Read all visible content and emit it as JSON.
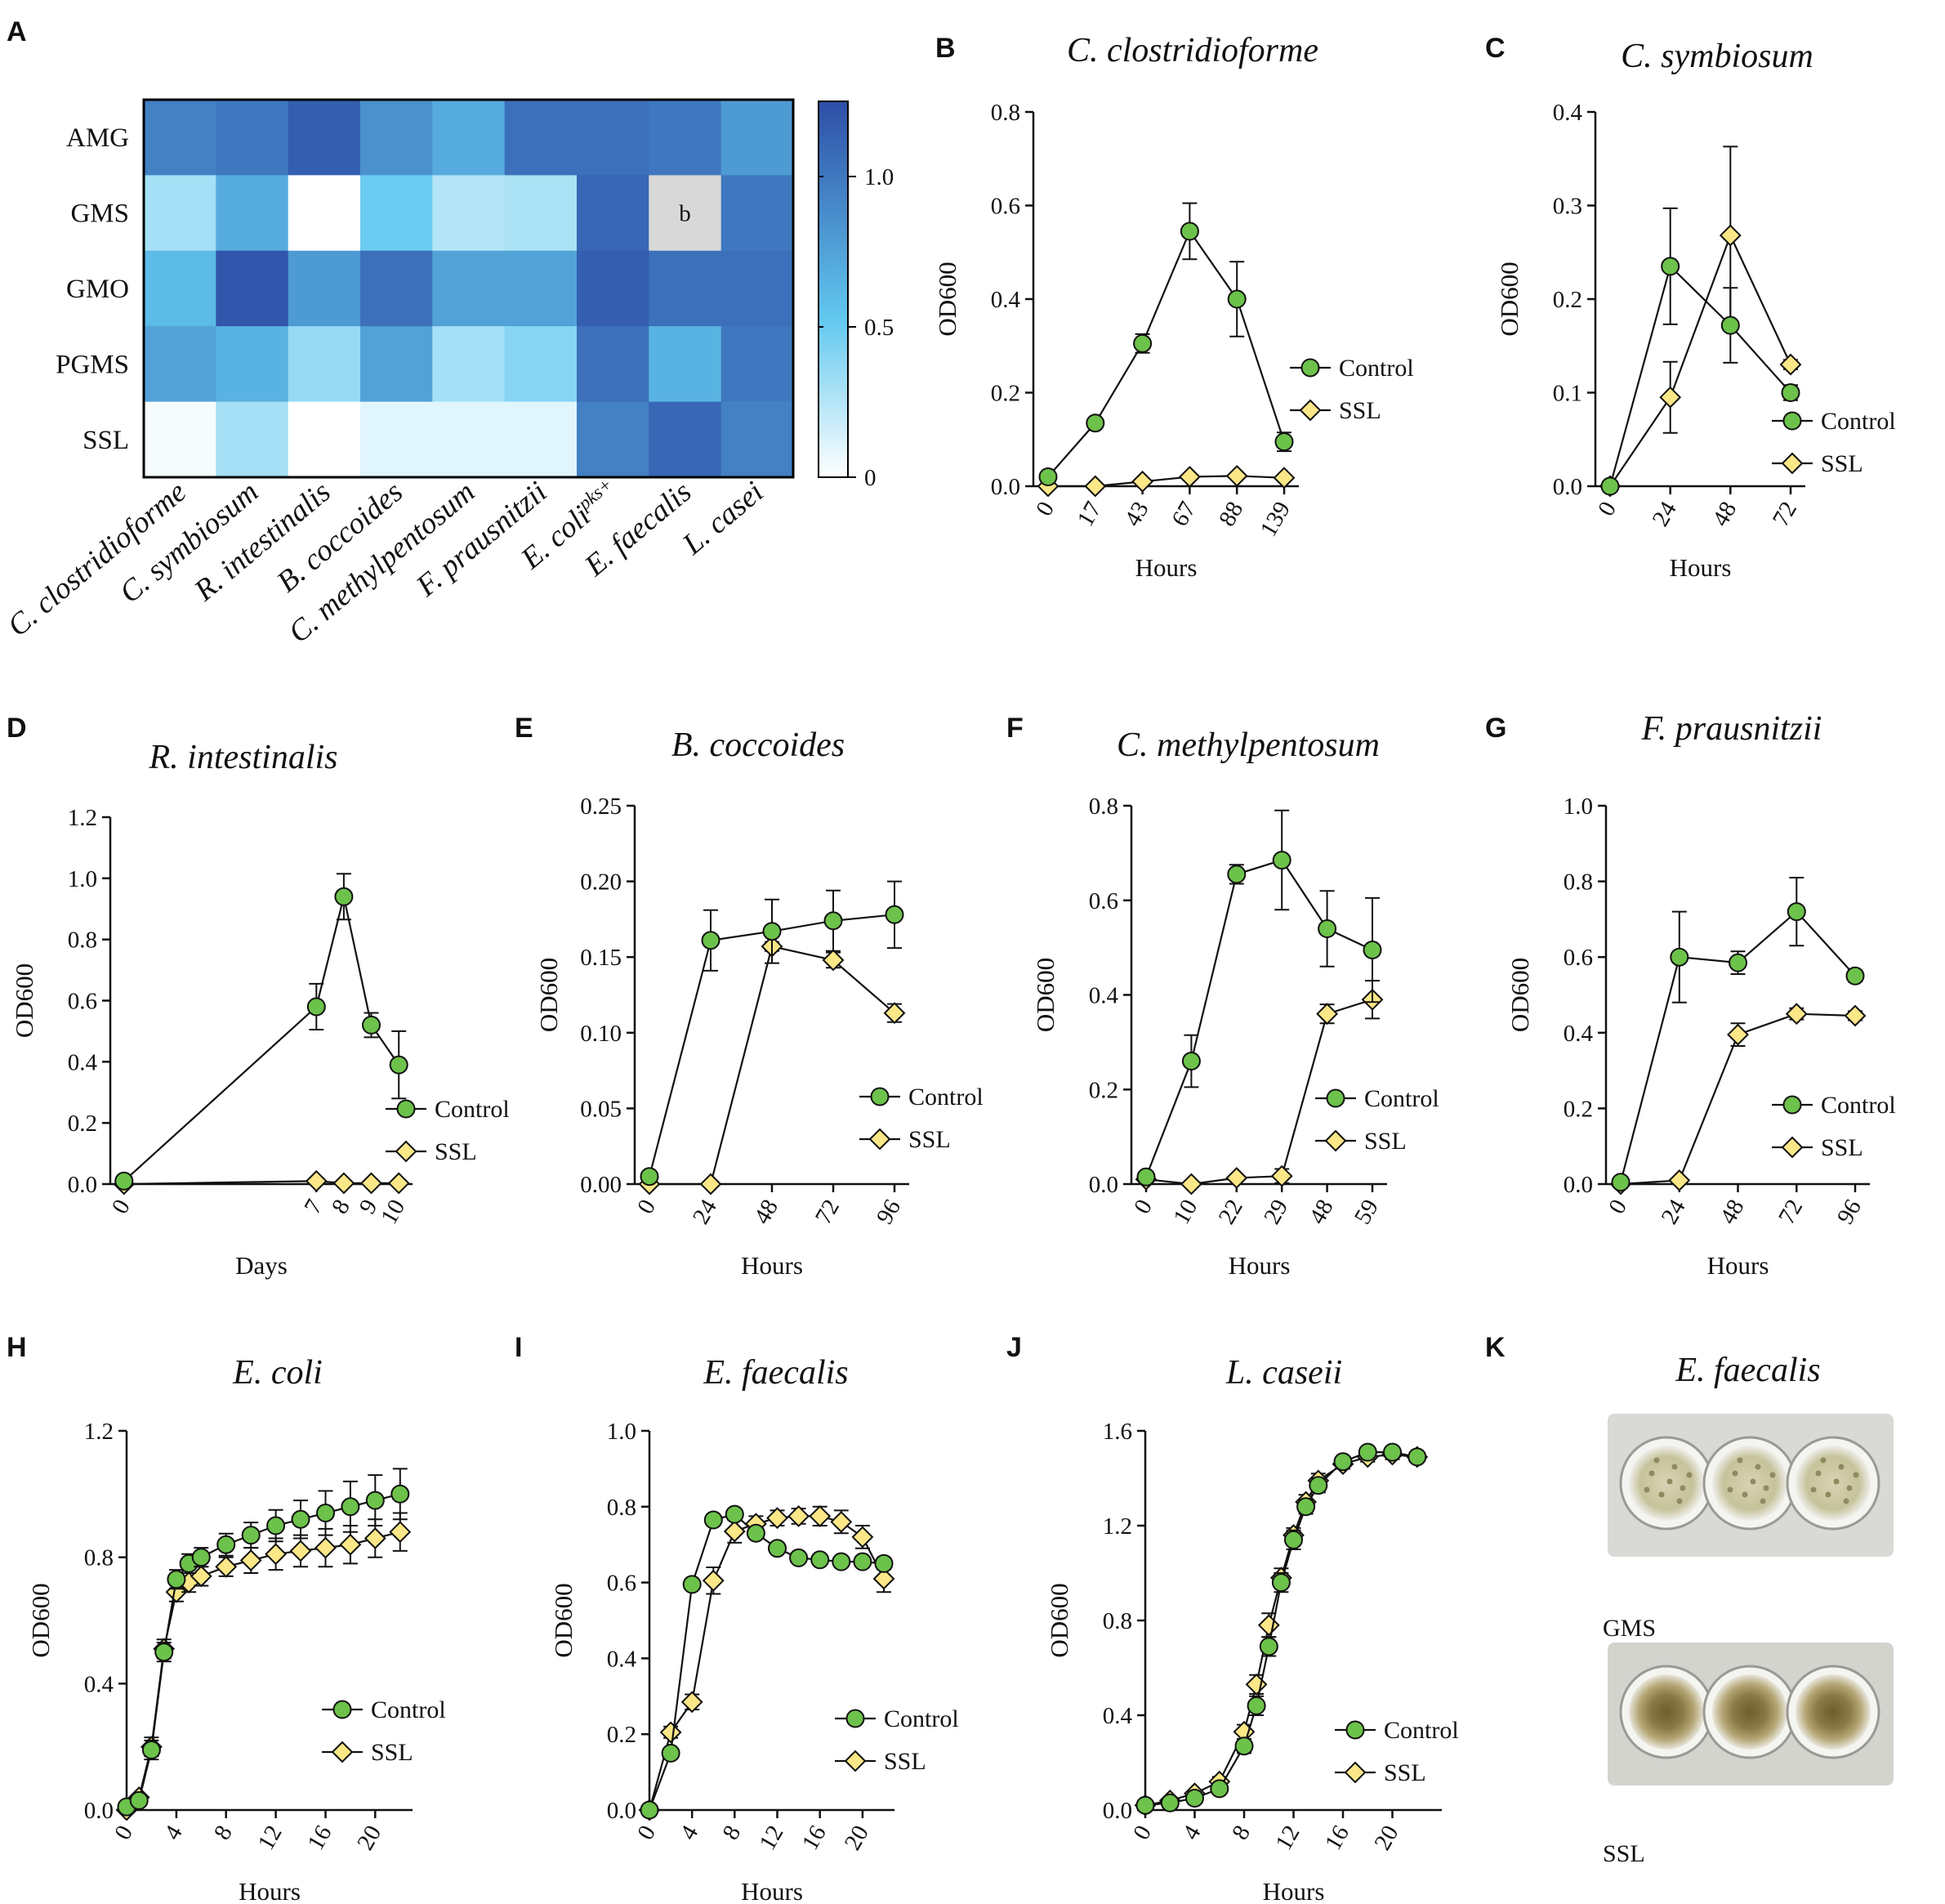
{
  "panels": {
    "A": "A",
    "B": "B",
    "C": "C",
    "D": "D",
    "E": "E",
    "F": "F",
    "G": "G",
    "H": "H",
    "I": "I",
    "J": "J",
    "K": "K"
  },
  "legend": {
    "control": "Control",
    "ssl": "SSL"
  },
  "colors": {
    "control": "#6cc24a",
    "ssl": "#fbe787",
    "heat_low": "#ffffff",
    "heat_mid": "#62c8ef",
    "heat_high": "#2d4ea6",
    "missing": "#d8d8d8"
  },
  "heatmap": {
    "rows": [
      "AMG",
      "GMS",
      "GMO",
      "PGMS",
      "SSL"
    ],
    "columns": [
      "C. clostridioforme",
      "C. symbiosum",
      "R. intestinalis",
      "B. coccoides",
      "C. methylpentosum",
      "F. prausnitzii",
      "E. coli",
      "E. faecalis",
      "L. casei"
    ],
    "ecoli_superscript": "pks+",
    "values": [
      [
        0.95,
        1.0,
        1.15,
        0.85,
        0.7,
        1.05,
        1.05,
        1.0,
        0.8
      ],
      [
        0.3,
        0.7,
        0.0,
        0.5,
        0.25,
        0.28,
        1.1,
        null,
        1.0
      ],
      [
        0.6,
        1.2,
        0.8,
        1.05,
        0.75,
        0.75,
        1.15,
        1.05,
        1.05
      ],
      [
        0.75,
        0.65,
        0.35,
        0.75,
        0.3,
        0.4,
        1.05,
        0.65,
        1.0
      ],
      [
        0.03,
        0.3,
        0.0,
        0.1,
        0.1,
        0.1,
        0.95,
        1.1,
        0.95
      ]
    ],
    "missing_label": "b",
    "colorbar_ticks": [
      "0",
      "0.5",
      "1.0"
    ],
    "colorbar_range": [
      0,
      1.25
    ]
  },
  "chart_data": [
    {
      "id": "B",
      "type": "line",
      "title": "C. clostridioforme",
      "xlabel": "Hours",
      "ylabel": "OD600",
      "ylim": [
        0,
        0.8
      ],
      "yticks": [
        "0.0",
        "0.2",
        "0.4",
        "0.6",
        "0.8"
      ],
      "categories": [
        "0",
        "17",
        "43",
        "67",
        "88",
        "139"
      ],
      "x_rotated": true,
      "series": [
        {
          "name": "Control",
          "values": [
            0.02,
            0.135,
            0.305,
            0.545,
            0.4,
            0.095
          ],
          "errors": [
            0.005,
            0.008,
            0.02,
            0.06,
            0.08,
            0.02
          ]
        },
        {
          "name": "SSL",
          "values": [
            0.0,
            0.0,
            0.01,
            0.02,
            0.022,
            0.018
          ],
          "errors": [
            0.002,
            0.002,
            0.003,
            0.004,
            0.004,
            0.004
          ]
        }
      ]
    },
    {
      "id": "C",
      "type": "line",
      "title": "C. symbiosum",
      "xlabel": "Hours",
      "ylabel": "OD600",
      "ylim": [
        0,
        0.4
      ],
      "yticks": [
        "0.0",
        "0.1",
        "0.2",
        "0.3",
        "0.4"
      ],
      "categories": [
        "0",
        "24",
        "48",
        "72"
      ],
      "x_rotated": true,
      "series": [
        {
          "name": "Control",
          "values": [
            0.0,
            0.235,
            0.172,
            0.1
          ],
          "errors": [
            0.0,
            0.062,
            0.04,
            0.008
          ]
        },
        {
          "name": "SSL",
          "values": [
            0.0,
            0.095,
            0.268,
            0.13
          ],
          "errors": [
            0.0,
            0.038,
            0.095,
            0.005
          ]
        }
      ]
    },
    {
      "id": "D",
      "type": "line",
      "title": "R. intestinalis",
      "xlabel": "Days",
      "ylabel": "OD600",
      "ylim": [
        0,
        1.2
      ],
      "yticks": [
        "0.0",
        "0.2",
        "0.4",
        "0.6",
        "0.8",
        "1.0",
        "1.2"
      ],
      "x": [
        0,
        7,
        8,
        9,
        10
      ],
      "xlim": [
        -0.5,
        10.5
      ],
      "xticks": [
        "0",
        "7",
        "8",
        "9",
        "10"
      ],
      "x_rotated": true,
      "series": [
        {
          "name": "Control",
          "values": [
            0.01,
            0.58,
            0.94,
            0.52,
            0.39
          ],
          "errors": [
            0.005,
            0.075,
            0.075,
            0.04,
            0.11
          ]
        },
        {
          "name": "SSL",
          "values": [
            0.0,
            0.01,
            0.003,
            0.003,
            0.003
          ],
          "errors": [
            0.002,
            0.005,
            0.002,
            0.002,
            0.002
          ]
        }
      ]
    },
    {
      "id": "E",
      "type": "line",
      "title": "B. coccoides",
      "xlabel": "Hours",
      "ylabel": "OD600",
      "ylim": [
        0,
        0.25
      ],
      "yticks": [
        "0.00",
        "0.05",
        "0.10",
        "0.15",
        "0.20",
        "0.25"
      ],
      "categories": [
        "0",
        "24",
        "48",
        "72",
        "96"
      ],
      "x_rotated": true,
      "series": [
        {
          "name": "Control",
          "values": [
            0.005,
            0.161,
            0.167,
            0.174,
            0.178
          ],
          "errors": [
            0.003,
            0.02,
            0.021,
            0.02,
            0.022
          ]
        },
        {
          "name": "SSL",
          "values": [
            0.0,
            0.0,
            0.157,
            0.148,
            0.113
          ],
          "errors": [
            0.0,
            0.0,
            0.003,
            0.005,
            0.006
          ]
        }
      ]
    },
    {
      "id": "F",
      "type": "line",
      "title": "C. methylpentosum",
      "xlabel": "Hours",
      "ylabel": "OD600",
      "ylim": [
        0,
        0.8
      ],
      "yticks": [
        "0.0",
        "0.2",
        "0.4",
        "0.6",
        "0.8"
      ],
      "categories": [
        "0",
        "10",
        "22",
        "29",
        "48",
        "59"
      ],
      "x_rotated": true,
      "series": [
        {
          "name": "Control",
          "values": [
            0.015,
            0.26,
            0.655,
            0.685,
            0.54,
            0.495
          ],
          "errors": [
            0.01,
            0.055,
            0.02,
            0.105,
            0.08,
            0.11
          ]
        },
        {
          "name": "SSL",
          "values": [
            0.01,
            0.0,
            0.013,
            0.017,
            0.36,
            0.39
          ],
          "errors": [
            0.003,
            0.002,
            0.004,
            0.015,
            0.02,
            0.04
          ]
        }
      ]
    },
    {
      "id": "G",
      "type": "line",
      "title": "F. prausnitzii",
      "xlabel": "Hours",
      "ylabel": "OD600",
      "ylim": [
        0,
        1.0
      ],
      "yticks": [
        "0.0",
        "0.2",
        "0.4",
        "0.6",
        "0.8",
        "1.0"
      ],
      "categories": [
        "0",
        "24",
        "48",
        "72",
        "96"
      ],
      "x_rotated": true,
      "series": [
        {
          "name": "Control",
          "values": [
            0.005,
            0.6,
            0.585,
            0.72,
            0.55
          ],
          "errors": [
            0.003,
            0.12,
            0.03,
            0.09,
            0.015
          ]
        },
        {
          "name": "SSL",
          "values": [
            0.0,
            0.01,
            0.395,
            0.45,
            0.445
          ],
          "errors": [
            0.0,
            0.003,
            0.03,
            0.015,
            0.012
          ]
        }
      ]
    },
    {
      "id": "H",
      "type": "line",
      "title": "E. coli",
      "xlabel": "Hours",
      "ylabel": "OD600",
      "ylim": [
        0,
        1.2
      ],
      "yticks": [
        "0.0",
        "0.4",
        "0.8",
        "1.2"
      ],
      "xlim": [
        0,
        23
      ],
      "xticks": [
        "0",
        "4",
        "8",
        "12",
        "16",
        "20"
      ],
      "xtick_values": [
        0,
        4,
        8,
        12,
        16,
        20
      ],
      "x_rotated": true,
      "x": [
        0,
        1,
        2,
        3,
        4,
        5,
        6,
        8,
        10,
        12,
        14,
        16,
        18,
        20,
        22
      ],
      "series": [
        {
          "name": "Control",
          "values": [
            0.01,
            0.03,
            0.19,
            0.5,
            0.73,
            0.78,
            0.8,
            0.84,
            0.87,
            0.9,
            0.92,
            0.94,
            0.96,
            0.98,
            1.0
          ],
          "errors": [
            0.005,
            0.01,
            0.03,
            0.03,
            0.03,
            0.03,
            0.03,
            0.035,
            0.04,
            0.05,
            0.06,
            0.07,
            0.08,
            0.08,
            0.08
          ]
        },
        {
          "name": "SSL",
          "values": [
            0.0,
            0.04,
            0.2,
            0.51,
            0.69,
            0.72,
            0.74,
            0.77,
            0.79,
            0.81,
            0.82,
            0.83,
            0.84,
            0.86,
            0.88
          ],
          "errors": [
            0.005,
            0.01,
            0.03,
            0.03,
            0.03,
            0.03,
            0.03,
            0.03,
            0.04,
            0.05,
            0.05,
            0.06,
            0.06,
            0.06,
            0.06
          ]
        }
      ]
    },
    {
      "id": "I",
      "type": "line",
      "title": "E. faecalis",
      "xlabel": "Hours",
      "ylabel": "OD600",
      "ylim": [
        0,
        1.0
      ],
      "yticks": [
        "0.0",
        "0.2",
        "0.4",
        "0.6",
        "0.8",
        "1.0"
      ],
      "xlim": [
        0,
        23
      ],
      "xticks": [
        "0",
        "4",
        "8",
        "12",
        "16",
        "20"
      ],
      "xtick_values": [
        0,
        4,
        8,
        12,
        16,
        20
      ],
      "x_rotated": true,
      "x": [
        0,
        2,
        4,
        6,
        8,
        10,
        12,
        14,
        16,
        18,
        20,
        22
      ],
      "series": [
        {
          "name": "Control",
          "values": [
            0.0,
            0.15,
            0.595,
            0.765,
            0.78,
            0.73,
            0.69,
            0.665,
            0.66,
            0.655,
            0.655,
            0.65
          ],
          "errors": [
            0.003,
            0.01,
            0.01,
            0.01,
            0.01,
            0.01,
            0.01,
            0.01,
            0.01,
            0.01,
            0.01,
            0.015
          ]
        },
        {
          "name": "SSL",
          "values": [
            0.0,
            0.205,
            0.285,
            0.605,
            0.735,
            0.755,
            0.77,
            0.775,
            0.775,
            0.76,
            0.72,
            0.61
          ],
          "errors": [
            0.003,
            0.015,
            0.02,
            0.035,
            0.03,
            0.02,
            0.02,
            0.02,
            0.025,
            0.03,
            0.03,
            0.035
          ]
        }
      ]
    },
    {
      "id": "J",
      "type": "line",
      "title": "L. caseii",
      "xlabel": "Hours",
      "ylabel": "OD600",
      "ylim": [
        0,
        1.6
      ],
      "yticks": [
        "0.0",
        "0.4",
        "0.8",
        "1.2",
        "1.6"
      ],
      "xlim": [
        0,
        24
      ],
      "xticks": [
        "0",
        "4",
        "8",
        "12",
        "16",
        "20"
      ],
      "xtick_values": [
        0,
        4,
        8,
        12,
        16,
        20
      ],
      "x_rotated": true,
      "x": [
        0,
        2,
        4,
        6,
        8,
        9,
        10,
        11,
        12,
        13,
        14,
        16,
        18,
        20,
        22
      ],
      "series": [
        {
          "name": "Control",
          "values": [
            0.02,
            0.03,
            0.05,
            0.09,
            0.27,
            0.44,
            0.69,
            0.96,
            1.14,
            1.28,
            1.37,
            1.47,
            1.51,
            1.51,
            1.49
          ],
          "errors": [
            0.01,
            0.01,
            0.01,
            0.02,
            0.03,
            0.04,
            0.04,
            0.04,
            0.04,
            0.03,
            0.03,
            0.02,
            0.02,
            0.02,
            0.02
          ]
        },
        {
          "name": "SSL",
          "values": [
            0.02,
            0.04,
            0.07,
            0.12,
            0.33,
            0.53,
            0.78,
            0.98,
            1.16,
            1.3,
            1.39,
            1.46,
            1.49,
            1.5,
            1.49
          ],
          "errors": [
            0.01,
            0.01,
            0.01,
            0.02,
            0.03,
            0.04,
            0.05,
            0.04,
            0.03,
            0.03,
            0.03,
            0.02,
            0.02,
            0.02,
            0.02
          ]
        }
      ]
    }
  ],
  "panel_k": {
    "title": "E. faecalis",
    "wells": [
      {
        "label": "GMS",
        "appearance": "clumped"
      },
      {
        "label": "SSL",
        "appearance": "pellet"
      }
    ]
  }
}
